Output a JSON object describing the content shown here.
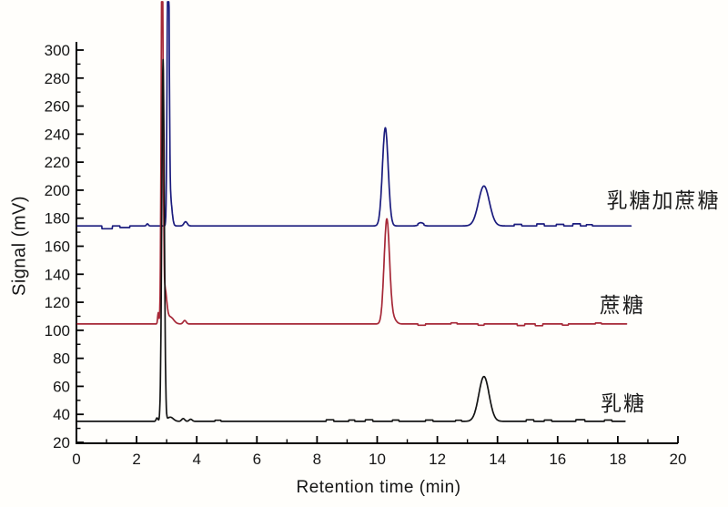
{
  "chart_data": {
    "type": "line",
    "xlabel": "Retention time (min)",
    "ylabel": "Signal (mV)",
    "xlim": [
      0,
      20
    ],
    "ylim": [
      20,
      310
    ],
    "x_ticks_major": [
      0,
      2,
      4,
      6,
      8,
      10,
      12,
      14,
      16,
      18,
      20
    ],
    "x_ticks_minor": [
      1,
      3,
      5,
      7,
      9,
      11,
      13,
      15,
      17,
      19
    ],
    "y_ticks_major": [
      20,
      40,
      60,
      80,
      100,
      120,
      140,
      160,
      180,
      200,
      220,
      240,
      260,
      280,
      300
    ],
    "y_ticks_minor": [
      30,
      50,
      70,
      90,
      110,
      130,
      150,
      170,
      190,
      210,
      230,
      250,
      270,
      290
    ],
    "grid": false,
    "legend_position": "right-inline",
    "axis_color": "#000000",
    "text_color": "#161616",
    "series": [
      {
        "name": "lactose-plus-sucrose",
        "label": "乳糖加蔗糖",
        "color": "#1b1c7e",
        "baseline_mv": 174.5,
        "start_min": 0.03,
        "end_min": 18.45,
        "peaks_center_height_sigma": [
          [
            2.36,
            1.5,
            0.03
          ],
          [
            3.05,
            232,
            0.03
          ],
          [
            3.12,
            20,
            0.055
          ],
          [
            3.63,
            3,
            0.055
          ],
          [
            10.27,
            70,
            0.095
          ],
          [
            11.45,
            1.5,
            0.08
          ],
          [
            13.55,
            28.5,
            0.18
          ]
        ],
        "noise_steps_t1_t2_delta": [
          [
            0.85,
            1.2,
            -2.0
          ],
          [
            1.45,
            1.78,
            -1.2
          ],
          [
            11.35,
            11.55,
            0.8
          ],
          [
            14.55,
            14.8,
            1.1
          ],
          [
            15.3,
            15.55,
            1.4
          ],
          [
            15.95,
            16.2,
            1.1
          ],
          [
            16.5,
            16.75,
            1.5
          ],
          [
            16.95,
            17.15,
            0.9
          ]
        ],
        "solvent_peak_clipped": true,
        "peak_annotations": [
          "lactose peak ~13.5 min ~203 mV",
          "sucrose peak ~10.3 min ~244 mV"
        ]
      },
      {
        "name": "sucrose",
        "label": "蔗糖",
        "color": "#a62837",
        "baseline_mv": 104.5,
        "start_min": 0.03,
        "end_min": 18.3,
        "peaks_center_height_sigma": [
          [
            2.72,
            8,
            0.02
          ],
          [
            2.85,
            292,
            0.03
          ],
          [
            2.94,
            24,
            0.06
          ],
          [
            3.12,
            5,
            0.11
          ],
          [
            3.6,
            2.5,
            0.05
          ],
          [
            10.32,
            74.5,
            0.09
          ],
          [
            10.52,
            4,
            0.1
          ]
        ],
        "noise_steps_t1_t2_delta": [
          [
            11.35,
            11.6,
            -0.9
          ],
          [
            12.45,
            12.65,
            0.8
          ],
          [
            13.35,
            13.55,
            -0.9
          ],
          [
            14.65,
            14.9,
            -1.1
          ],
          [
            15.25,
            15.5,
            -1.2
          ],
          [
            16.15,
            16.35,
            -0.8
          ],
          [
            17.25,
            17.45,
            0.7
          ]
        ],
        "solvent_peak_clipped": true,
        "peak_annotations": [
          "sucrose peak ~10.3 min ~179 mV"
        ]
      },
      {
        "name": "lactose",
        "label": "乳糖",
        "color": "#141414",
        "baseline_mv": 35,
        "start_min": 0.03,
        "end_min": 18.25,
        "peaks_center_height_sigma": [
          [
            2.68,
            2.5,
            0.03
          ],
          [
            2.88,
            258,
            0.042
          ],
          [
            3.12,
            3,
            0.1
          ],
          [
            3.55,
            2,
            0.05
          ],
          [
            3.8,
            1.5,
            0.05
          ],
          [
            13.55,
            32,
            0.17
          ]
        ],
        "noise_steps_t1_t2_delta": [
          [
            4.6,
            4.8,
            0.8
          ],
          [
            8.3,
            8.55,
            1.1
          ],
          [
            9.05,
            9.25,
            0.9
          ],
          [
            9.6,
            9.85,
            1.1
          ],
          [
            10.5,
            10.72,
            0.9
          ],
          [
            11.6,
            11.85,
            0.9
          ],
          [
            12.6,
            12.8,
            0.8
          ],
          [
            14.95,
            15.2,
            1.1
          ],
          [
            15.55,
            15.8,
            0.9
          ],
          [
            16.6,
            16.9,
            1.2
          ],
          [
            17.55,
            17.8,
            0.9
          ]
        ],
        "solvent_peak_clipped": false,
        "peak_annotations": [
          "solvent front apex ~293 mV",
          "lactose peak ~13.5 min ~67 mV"
        ]
      }
    ]
  }
}
